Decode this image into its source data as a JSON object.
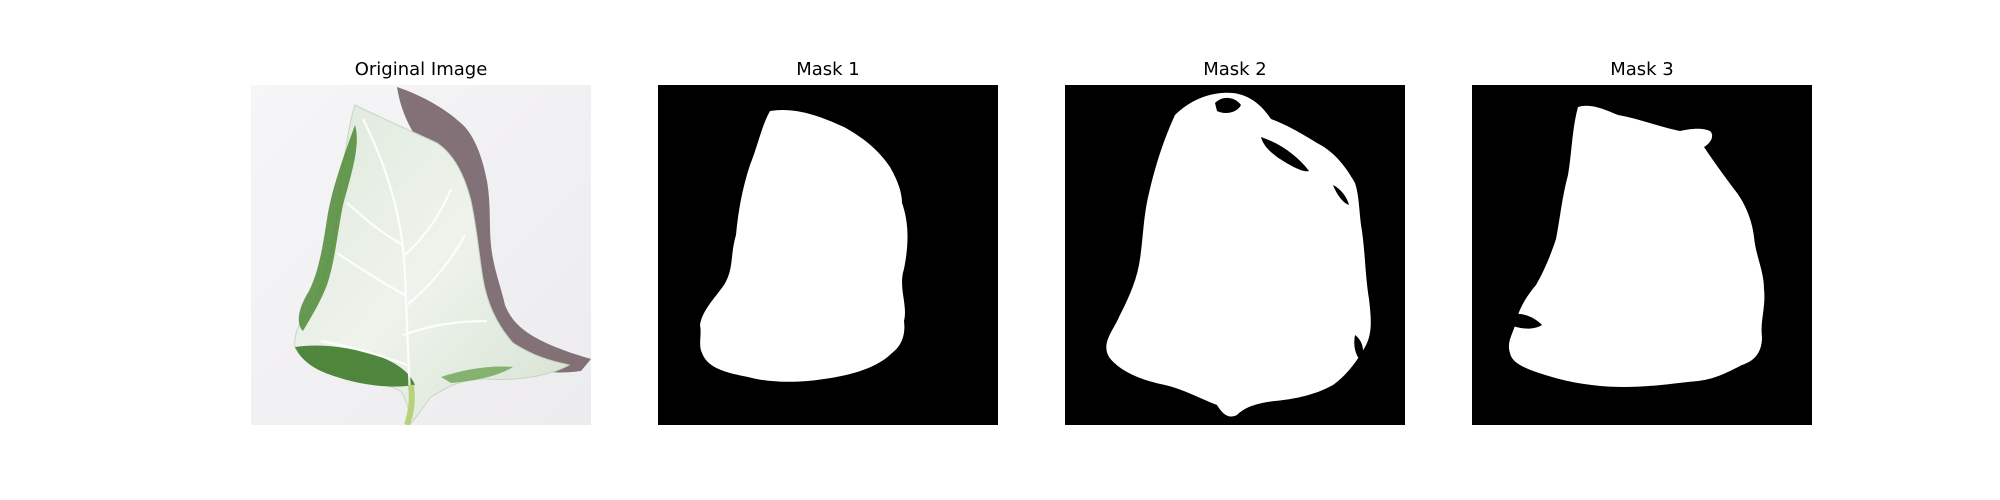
{
  "panels": [
    {
      "title": "Original Image",
      "kind": "leaf-photo"
    },
    {
      "title": "Mask 1",
      "kind": "binary-mask"
    },
    {
      "title": "Mask 2",
      "kind": "binary-mask"
    },
    {
      "title": "Mask 3",
      "kind": "binary-mask"
    }
  ],
  "colors": {
    "figure_background": "#ffffff",
    "mask_background": "#000000",
    "mask_foreground": "#ffffff",
    "leaf_surface": "#e2ece0",
    "leaf_green": "#4f8a35",
    "leaf_shadow": "#6e5a60",
    "photo_background": "#f2f1f3"
  }
}
